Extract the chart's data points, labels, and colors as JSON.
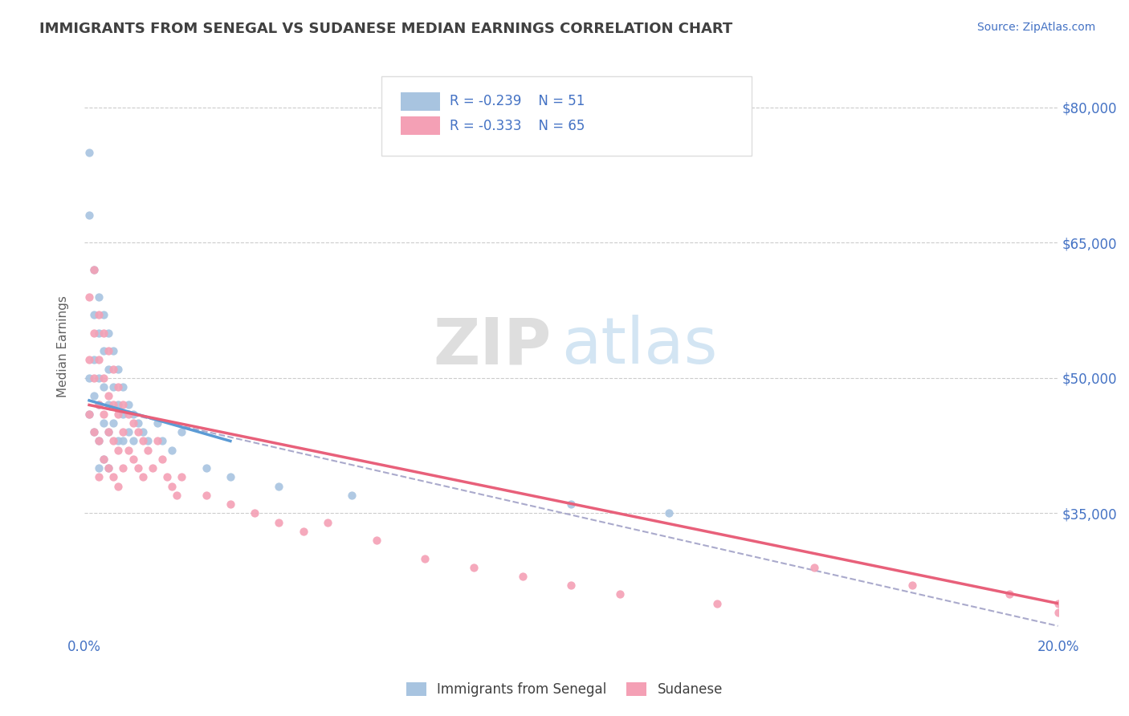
{
  "title": "IMMIGRANTS FROM SENEGAL VS SUDANESE MEDIAN EARNINGS CORRELATION CHART",
  "source": "Source: ZipAtlas.com",
  "ylabel": "Median Earnings",
  "xlim": [
    0.0,
    0.2
  ],
  "ylim": [
    22000,
    85000
  ],
  "yticks": [
    35000,
    50000,
    65000,
    80000
  ],
  "ytick_labels": [
    "$35,000",
    "$50,000",
    "$65,000",
    "$80,000"
  ],
  "xticks": [
    0.0,
    0.05,
    0.1,
    0.15,
    0.2
  ],
  "senegal_color": "#a8c4e0",
  "sudanese_color": "#f4a0b5",
  "senegal_line_color": "#5b9bd5",
  "sudanese_line_color": "#e8607a",
  "dashed_line_color": "#aaaacc",
  "R_senegal": -0.239,
  "N_senegal": 51,
  "R_sudanese": -0.333,
  "N_sudanese": 65,
  "legend_label_senegal": "Immigrants from Senegal",
  "legend_label_sudanese": "Sudanese",
  "watermark_zip": "ZIP",
  "watermark_atlas": "atlas",
  "background_color": "#ffffff",
  "grid_color": "#cccccc",
  "axis_color": "#4472c4",
  "title_color": "#404040",
  "senegal_scatter_x": [
    0.001,
    0.001,
    0.001,
    0.001,
    0.002,
    0.002,
    0.002,
    0.002,
    0.002,
    0.003,
    0.003,
    0.003,
    0.003,
    0.003,
    0.003,
    0.004,
    0.004,
    0.004,
    0.004,
    0.004,
    0.005,
    0.005,
    0.005,
    0.005,
    0.005,
    0.006,
    0.006,
    0.006,
    0.007,
    0.007,
    0.007,
    0.008,
    0.008,
    0.008,
    0.009,
    0.009,
    0.01,
    0.01,
    0.011,
    0.012,
    0.013,
    0.015,
    0.016,
    0.018,
    0.02,
    0.025,
    0.03,
    0.04,
    0.055,
    0.1,
    0.12
  ],
  "senegal_scatter_y": [
    75000,
    68000,
    50000,
    46000,
    62000,
    57000,
    52000,
    48000,
    44000,
    59000,
    55000,
    50000,
    47000,
    43000,
    40000,
    57000,
    53000,
    49000,
    45000,
    41000,
    55000,
    51000,
    47000,
    44000,
    40000,
    53000,
    49000,
    45000,
    51000,
    47000,
    43000,
    49000,
    46000,
    43000,
    47000,
    44000,
    46000,
    43000,
    45000,
    44000,
    43000,
    45000,
    43000,
    42000,
    44000,
    40000,
    39000,
    38000,
    37000,
    36000,
    35000
  ],
  "sudanese_scatter_x": [
    0.001,
    0.001,
    0.001,
    0.002,
    0.002,
    0.002,
    0.002,
    0.003,
    0.003,
    0.003,
    0.003,
    0.003,
    0.004,
    0.004,
    0.004,
    0.004,
    0.005,
    0.005,
    0.005,
    0.005,
    0.006,
    0.006,
    0.006,
    0.006,
    0.007,
    0.007,
    0.007,
    0.007,
    0.008,
    0.008,
    0.008,
    0.009,
    0.009,
    0.01,
    0.01,
    0.011,
    0.011,
    0.012,
    0.012,
    0.013,
    0.014,
    0.015,
    0.016,
    0.017,
    0.018,
    0.019,
    0.02,
    0.025,
    0.03,
    0.035,
    0.04,
    0.045,
    0.05,
    0.06,
    0.07,
    0.08,
    0.09,
    0.1,
    0.11,
    0.13,
    0.15,
    0.17,
    0.19,
    0.2,
    0.2
  ],
  "sudanese_scatter_y": [
    59000,
    52000,
    46000,
    62000,
    55000,
    50000,
    44000,
    57000,
    52000,
    47000,
    43000,
    39000,
    55000,
    50000,
    46000,
    41000,
    53000,
    48000,
    44000,
    40000,
    51000,
    47000,
    43000,
    39000,
    49000,
    46000,
    42000,
    38000,
    47000,
    44000,
    40000,
    46000,
    42000,
    45000,
    41000,
    44000,
    40000,
    43000,
    39000,
    42000,
    40000,
    43000,
    41000,
    39000,
    38000,
    37000,
    39000,
    37000,
    36000,
    35000,
    34000,
    33000,
    34000,
    32000,
    30000,
    29000,
    28000,
    27000,
    26000,
    25000,
    29000,
    27000,
    26000,
    25000,
    24000
  ],
  "senegal_line_x": [
    0.001,
    0.03
  ],
  "senegal_line_y": [
    47500,
    43000
  ],
  "sudanese_line_x": [
    0.001,
    0.2
  ],
  "sudanese_line_y": [
    47000,
    25000
  ],
  "dashed_line_x": [
    0.001,
    0.2
  ],
  "dashed_line_y": [
    47000,
    22500
  ]
}
